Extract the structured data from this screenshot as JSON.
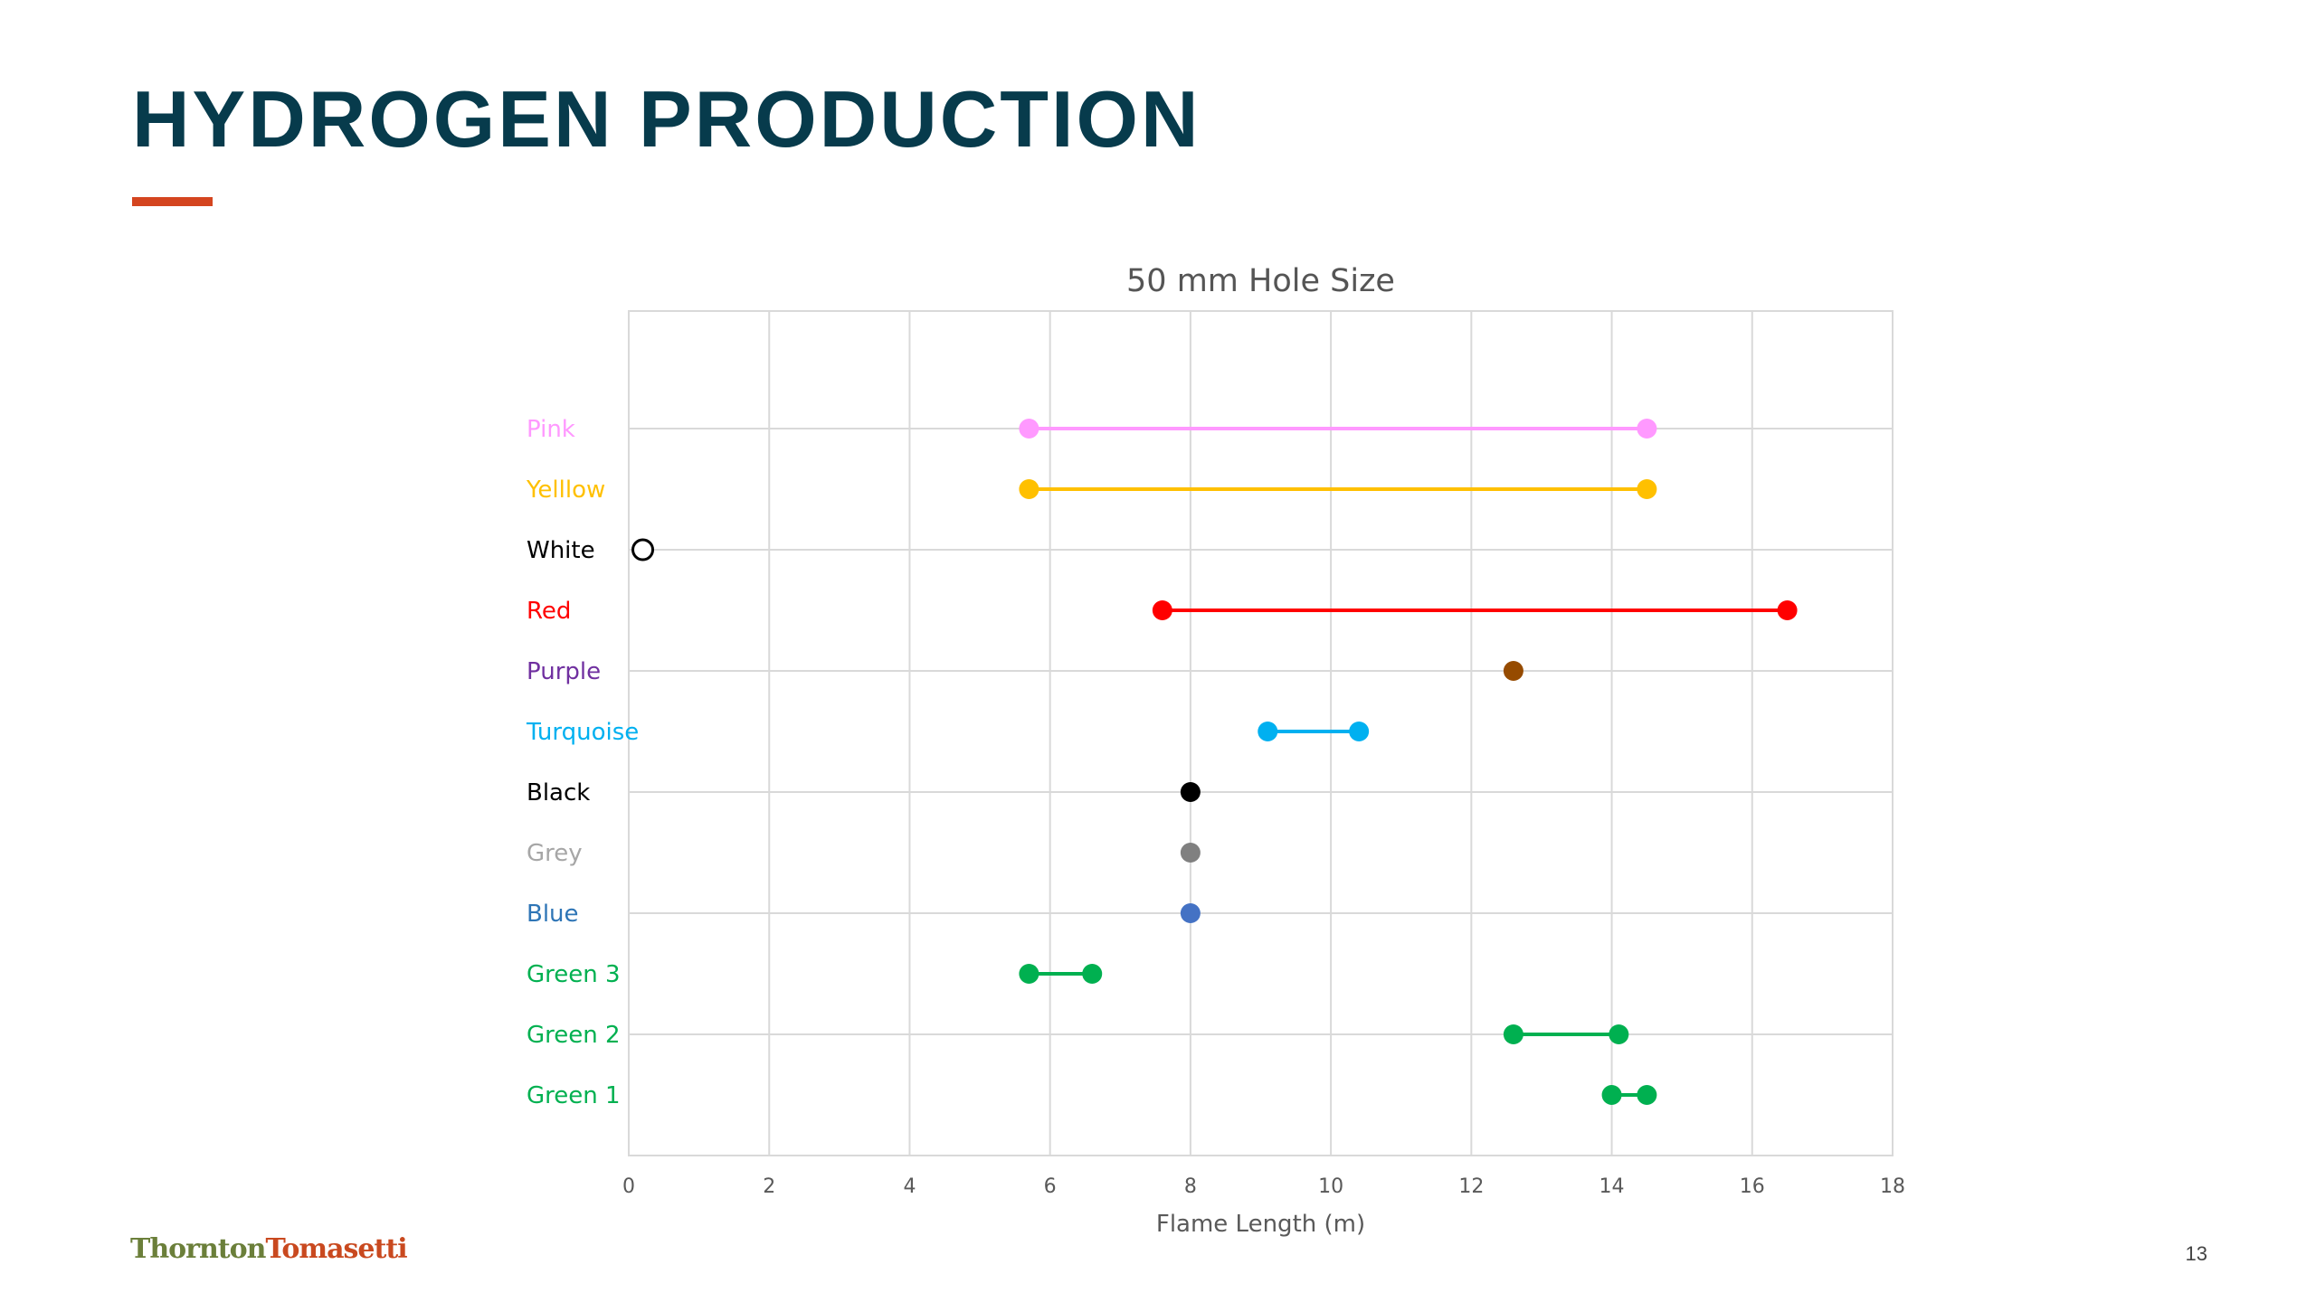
{
  "slide": {
    "title": "HYDROGEN PRODUCTION",
    "accent_color": "#d4451f",
    "title_color": "#073b4c",
    "logo_word_1": "Thornton",
    "logo_word_2": "Tomasetti",
    "page_number": "13"
  },
  "chart_data": {
    "type": "scatter",
    "title": "50 mm Hole Size",
    "xlabel": "Flame Length (m)",
    "ylabel": "",
    "xlim": [
      0,
      18
    ],
    "xticks": [
      0,
      2,
      4,
      6,
      8,
      10,
      12,
      14,
      16,
      18
    ],
    "grid": true,
    "categories": [
      {
        "name": "Pink",
        "label_color": "#ff99ff",
        "marker_color": "#ff99ff",
        "points": [
          5.7,
          14.5
        ]
      },
      {
        "name": "Yelllow",
        "label_color": "#ffc000",
        "marker_color": "#ffc000",
        "points": [
          5.7,
          14.5
        ]
      },
      {
        "name": "White",
        "label_color": "#000000",
        "marker_color": "#ffffff",
        "marker_stroke": "#000000",
        "points": [
          0.2
        ]
      },
      {
        "name": "Red",
        "label_color": "#ff0000",
        "marker_color": "#ff0000",
        "points": [
          7.6,
          16.5
        ]
      },
      {
        "name": "Purple",
        "label_color": "#7030a0",
        "marker_color": "#964b00",
        "points": [
          12.6
        ]
      },
      {
        "name": "Turquoise",
        "label_color": "#00b0f0",
        "marker_color": "#00b0f0",
        "points": [
          9.1,
          10.4
        ]
      },
      {
        "name": "Black",
        "label_color": "#000000",
        "marker_color": "#000000",
        "points": [
          8.0
        ]
      },
      {
        "name": "Grey",
        "label_color": "#a6a6a6",
        "marker_color": "#808080",
        "points": [
          8.0
        ]
      },
      {
        "name": "Blue",
        "label_color": "#2e75b6",
        "marker_color": "#4472c4",
        "points": [
          8.0
        ]
      },
      {
        "name": "Green 3",
        "label_color": "#00b050",
        "marker_color": "#00b050",
        "points": [
          5.7,
          6.6
        ]
      },
      {
        "name": "Green 2",
        "label_color": "#00b050",
        "marker_color": "#00b050",
        "points": [
          12.6,
          14.1
        ]
      },
      {
        "name": "Green 1",
        "label_color": "#00b050",
        "marker_color": "#00b050",
        "points": [
          14.0,
          14.5
        ]
      }
    ]
  }
}
